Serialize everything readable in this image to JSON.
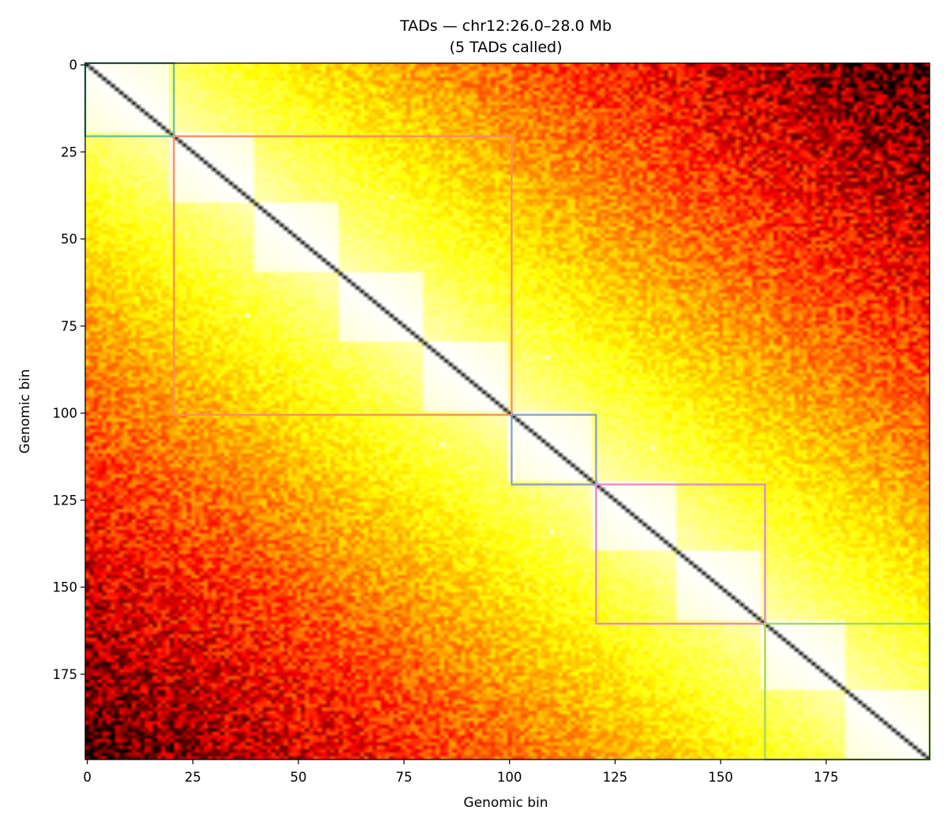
{
  "chart_data": {
    "type": "heatmap",
    "title": "TADs — chr12:26.0–28.0 Mb",
    "subtitle": "(5 TADs called)",
    "xlabel": "Genomic bin",
    "ylabel": "Genomic bin",
    "n_bins": 200,
    "xlim": [
      0,
      200
    ],
    "ylim": [
      200,
      0
    ],
    "x_ticks": [
      0,
      25,
      50,
      75,
      100,
      125,
      150,
      175
    ],
    "y_ticks": [
      0,
      25,
      50,
      75,
      100,
      125,
      150,
      175
    ],
    "colormap": "hot_r",
    "sub_domains": [
      [
        0,
        20
      ],
      [
        20,
        40
      ],
      [
        40,
        60
      ],
      [
        60,
        80
      ],
      [
        80,
        100
      ],
      [
        100,
        120
      ],
      [
        120,
        140
      ],
      [
        140,
        160
      ],
      [
        160,
        180
      ],
      [
        180,
        200
      ]
    ],
    "tads": [
      {
        "start": 0,
        "end": 21,
        "color": "#66c2a5"
      },
      {
        "start": 21,
        "end": 101,
        "color": "#fc8d62"
      },
      {
        "start": 101,
        "end": 121,
        "color": "#8da0cb"
      },
      {
        "start": 121,
        "end": 161,
        "color": "#e78ac3"
      },
      {
        "start": 161,
        "end": 200,
        "color": "#a6d854"
      }
    ],
    "loop_dots": [
      [
        38,
        72
      ],
      [
        72,
        38
      ],
      [
        84,
        109
      ],
      [
        109,
        84
      ],
      [
        110,
        134
      ],
      [
        134,
        110
      ]
    ]
  }
}
